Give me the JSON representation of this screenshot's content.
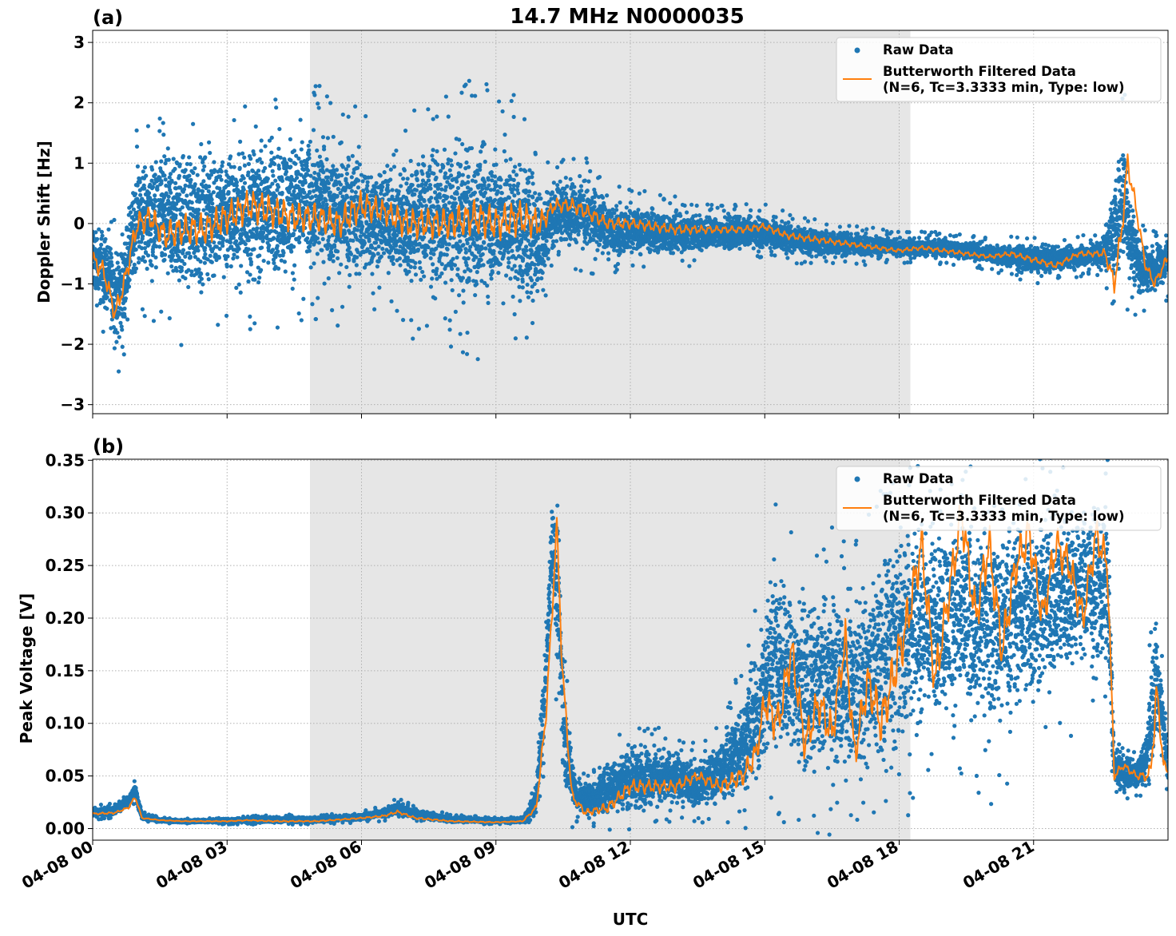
{
  "figure": {
    "title": "14.7 MHz N0000035",
    "xlabel": "UTC",
    "x_tick_labels": [
      "04-08 00",
      "04-08 03",
      "04-08 06",
      "04-08 09",
      "04-08 12",
      "04-08 15",
      "04-08 18",
      "04-08 21"
    ]
  },
  "colors": {
    "raw": "#1f77b4",
    "filtered": "#ff7f0e",
    "shade": "#e6e6e6",
    "grid": "#b0b0b0"
  },
  "chart_data": [
    {
      "type": "scatter",
      "panel_label": "(a)",
      "ylabel": "Doppler Shift [Hz]",
      "xlim_hours": [
        0,
        24
      ],
      "ylim": [
        -3.15,
        3.2
      ],
      "yticks": [
        3,
        2,
        1,
        0,
        -1,
        -2,
        -3
      ],
      "ytick_labels": [
        "3",
        "2",
        "1",
        "0",
        "−1",
        "−2",
        "−3"
      ],
      "shaded_interval_hours": [
        4.85,
        18.25
      ],
      "grid": true,
      "legend_position": "top-right",
      "legend": [
        "Raw Data",
        "Butterworth Filtered Data",
        "(N=6, Tc=3.3333 min, Type: low)"
      ],
      "series": [
        {
          "name": "Raw Data",
          "kind": "scatter-envelope",
          "x": [
            0,
            0.3,
            0.5,
            0.7,
            1.0,
            1.5,
            2.0,
            3.0,
            4.0,
            5.0,
            6.0,
            6.5,
            7.0,
            7.5,
            8.0,
            8.5,
            9.0,
            9.5,
            10.0,
            10.2,
            10.5,
            11.0,
            11.5,
            12.0,
            13.0,
            14.0,
            15.0,
            16.0,
            17.0,
            18.0,
            19.0,
            20.0,
            21.0,
            22.0,
            22.5,
            22.8,
            23.0,
            23.2,
            23.4,
            23.6,
            24.0
          ],
          "y_low": [
            -1.5,
            -1.7,
            -2.2,
            -2.0,
            -1.0,
            -1.3,
            -1.5,
            -1.3,
            -1.3,
            -1.1,
            -1.3,
            -1.0,
            -1.4,
            -1.4,
            -1.5,
            -1.7,
            -1.5,
            -1.7,
            -1.6,
            -0.6,
            -0.4,
            -0.6,
            -0.7,
            -0.6,
            -0.6,
            -0.5,
            -0.5,
            -0.6,
            -0.6,
            -0.6,
            -0.6,
            -0.7,
            -0.9,
            -0.8,
            -0.8,
            -1.1,
            -1.0,
            -1.2,
            -1.3,
            -1.2,
            -1.1
          ],
          "y_high": [
            0.3,
            0.1,
            -0.3,
            0.0,
            1.3,
            1.4,
            1.6,
            1.6,
            1.8,
            1.8,
            1.5,
            1.2,
            1.4,
            1.6,
            1.6,
            1.8,
            1.7,
            1.6,
            1.0,
            0.8,
            0.9,
            0.9,
            0.5,
            0.4,
            0.3,
            0.2,
            0.2,
            0.0,
            -0.1,
            -0.2,
            -0.2,
            -0.3,
            -0.3,
            -0.3,
            -0.2,
            0.8,
            1.9,
            0.6,
            -0.2,
            -0.3,
            -0.1
          ]
        },
        {
          "name": "Butterworth Filtered Data",
          "kind": "line",
          "x": [
            0,
            0.25,
            0.5,
            0.7,
            0.9,
            1.0,
            1.3,
            1.6,
            2.0,
            2.5,
            3.0,
            3.5,
            4.0,
            4.5,
            5.0,
            5.5,
            6.0,
            6.5,
            7.0,
            7.5,
            8.0,
            8.5,
            9.0,
            9.5,
            10.0,
            10.3,
            10.7,
            11.0,
            11.5,
            12.0,
            12.5,
            13.0,
            13.5,
            14.0,
            14.5,
            15.0,
            15.5,
            16.0,
            16.5,
            17.0,
            17.5,
            18.0,
            18.5,
            19.0,
            19.5,
            20.0,
            20.5,
            21.0,
            21.5,
            22.0,
            22.3,
            22.6,
            22.8,
            22.95,
            23.1,
            23.3,
            23.5,
            23.7,
            24.0
          ],
          "y": [
            -0.6,
            -0.8,
            -1.5,
            -1.0,
            -0.3,
            0.0,
            0.1,
            -0.2,
            -0.1,
            -0.1,
            0.1,
            0.3,
            0.2,
            0.1,
            0.1,
            0.0,
            0.3,
            0.2,
            0.0,
            0.0,
            0.0,
            0.1,
            0.0,
            0.1,
            0.0,
            0.3,
            0.3,
            0.2,
            0.0,
            0.0,
            -0.05,
            -0.1,
            -0.1,
            -0.1,
            -0.1,
            -0.05,
            -0.2,
            -0.25,
            -0.3,
            -0.35,
            -0.4,
            -0.45,
            -0.4,
            -0.45,
            -0.5,
            -0.55,
            -0.5,
            -0.6,
            -0.7,
            -0.5,
            -0.5,
            -0.5,
            -1.0,
            -0.2,
            1.0,
            0.2,
            -0.7,
            -1.0,
            -0.55
          ]
        }
      ]
    },
    {
      "type": "scatter",
      "panel_label": "(b)",
      "ylabel": "Peak Voltage [V]",
      "xlim_hours": [
        0,
        24
      ],
      "ylim": [
        -0.011,
        0.351
      ],
      "yticks": [
        0.35,
        0.3,
        0.25,
        0.2,
        0.15,
        0.1,
        0.05,
        0.0
      ],
      "ytick_labels": [
        "0.35",
        "0.30",
        "0.25",
        "0.20",
        "0.15",
        "0.10",
        "0.05",
        "0.00"
      ],
      "shaded_interval_hours": [
        4.85,
        18.25
      ],
      "grid": true,
      "legend_position": "top-right",
      "legend": [
        "Raw Data",
        "Butterworth Filtered Data",
        "(N=6, Tc=3.3333 min, Type: low)"
      ],
      "series": [
        {
          "name": "Raw Data",
          "kind": "scatter-envelope",
          "x": [
            0,
            0.5,
            0.8,
            0.95,
            1.1,
            1.5,
            2.0,
            3.0,
            4.0,
            5.0,
            6.0,
            6.5,
            6.8,
            7.2,
            8.0,
            9.0,
            9.6,
            9.9,
            10.1,
            10.25,
            10.4,
            10.55,
            10.8,
            11.2,
            11.5,
            12.0,
            13.0,
            13.5,
            14.0,
            14.5,
            14.9,
            15.2,
            15.5,
            16.0,
            16.5,
            17.0,
            17.5,
            18.0,
            18.5,
            19.0,
            20.0,
            21.0,
            22.0,
            22.5,
            22.65,
            22.8,
            23.0,
            23.3,
            23.5,
            23.7,
            23.85,
            24.0
          ],
          "y_low": [
            0.01,
            0.012,
            0.02,
            0.025,
            0.008,
            0.006,
            0.005,
            0.005,
            0.005,
            0.005,
            0.007,
            0.009,
            0.011,
            0.008,
            0.005,
            0.005,
            0.005,
            0.01,
            0.08,
            0.22,
            0.1,
            0.02,
            0.008,
            0.008,
            0.008,
            0.01,
            0.015,
            0.015,
            0.018,
            0.02,
            0.03,
            0.05,
            0.04,
            0.03,
            0.03,
            0.03,
            0.03,
            0.03,
            0.07,
            0.08,
            0.06,
            0.09,
            0.13,
            0.13,
            0.13,
            0.035,
            0.03,
            0.035,
            0.03,
            0.04,
            0.08,
            0.03
          ],
          "y_high": [
            0.02,
            0.023,
            0.033,
            0.045,
            0.015,
            0.01,
            0.009,
            0.01,
            0.012,
            0.012,
            0.015,
            0.02,
            0.027,
            0.02,
            0.012,
            0.01,
            0.01,
            0.04,
            0.19,
            0.33,
            0.3,
            0.14,
            0.05,
            0.05,
            0.07,
            0.09,
            0.08,
            0.07,
            0.09,
            0.14,
            0.2,
            0.29,
            0.26,
            0.23,
            0.25,
            0.24,
            0.28,
            0.33,
            0.32,
            0.32,
            0.33,
            0.33,
            0.33,
            0.33,
            0.33,
            0.08,
            0.075,
            0.07,
            0.09,
            0.24,
            0.16,
            0.08
          ]
        },
        {
          "name": "Butterworth Filtered Data",
          "kind": "line",
          "x": [
            0,
            0.5,
            0.8,
            0.95,
            1.1,
            1.5,
            2.0,
            3.0,
            3.5,
            4.0,
            5.0,
            6.0,
            6.5,
            6.8,
            7.2,
            8.0,
            9.0,
            9.6,
            9.9,
            10.1,
            10.25,
            10.35,
            10.5,
            10.7,
            11.0,
            11.5,
            12.0,
            12.5,
            13.0,
            13.5,
            14.0,
            14.5,
            14.8,
            15.0,
            15.3,
            15.6,
            15.9,
            16.2,
            16.5,
            16.8,
            17.0,
            17.3,
            17.6,
            17.9,
            18.2,
            18.5,
            18.8,
            19.1,
            19.4,
            19.7,
            20.0,
            20.3,
            20.6,
            20.9,
            21.2,
            21.5,
            21.8,
            22.1,
            22.4,
            22.65,
            22.8,
            23.0,
            23.3,
            23.6,
            23.75,
            23.9,
            24.0
          ],
          "y": [
            0.014,
            0.015,
            0.02,
            0.03,
            0.01,
            0.008,
            0.007,
            0.007,
            0.008,
            0.007,
            0.007,
            0.01,
            0.012,
            0.016,
            0.01,
            0.007,
            0.006,
            0.007,
            0.02,
            0.1,
            0.2,
            0.29,
            0.14,
            0.03,
            0.015,
            0.02,
            0.04,
            0.04,
            0.04,
            0.05,
            0.04,
            0.05,
            0.07,
            0.12,
            0.1,
            0.17,
            0.08,
            0.12,
            0.09,
            0.18,
            0.07,
            0.14,
            0.1,
            0.15,
            0.2,
            0.27,
            0.14,
            0.22,
            0.3,
            0.2,
            0.27,
            0.17,
            0.25,
            0.28,
            0.2,
            0.27,
            0.25,
            0.2,
            0.28,
            0.25,
            0.05,
            0.06,
            0.05,
            0.05,
            0.13,
            0.06,
            0.055
          ]
        }
      ]
    }
  ]
}
